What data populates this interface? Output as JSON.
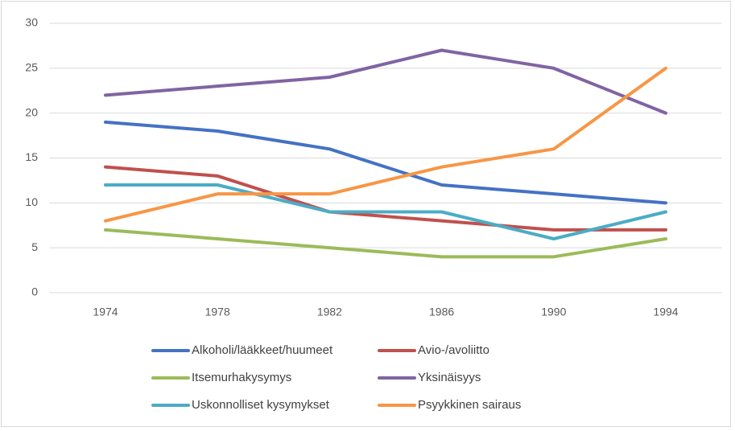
{
  "chart_data": {
    "type": "line",
    "categories": [
      "1974",
      "1978",
      "1982",
      "1986",
      "1990",
      "1994"
    ],
    "series": [
      {
        "name": "Alkoholi/lääkkeet/huumeet",
        "color": "#4472c4",
        "values": [
          19,
          18,
          16,
          12,
          11,
          10
        ]
      },
      {
        "name": "Avio-/avoliitto",
        "color": "#c0504d",
        "values": [
          14,
          13,
          9,
          8,
          7,
          7
        ]
      },
      {
        "name": "Itsemurhakysymys",
        "color": "#9bbb59",
        "values": [
          7,
          6,
          5,
          4,
          4,
          6
        ]
      },
      {
        "name": "Yksinäisyys",
        "color": "#8064a2",
        "values": [
          22,
          23,
          24,
          27,
          25,
          20
        ]
      },
      {
        "name": "Uskonnolliset kysymykset",
        "color": "#4bacc6",
        "values": [
          12,
          12,
          9,
          9,
          6,
          9
        ]
      },
      {
        "name": "Psyykkinen sairaus",
        "color": "#f79646",
        "values": [
          8,
          11,
          11,
          14,
          16,
          25
        ]
      }
    ],
    "ylim": [
      0,
      30
    ],
    "yticks": [
      0,
      5,
      10,
      15,
      20,
      25,
      30
    ],
    "grid": true,
    "legend": "bottom"
  }
}
